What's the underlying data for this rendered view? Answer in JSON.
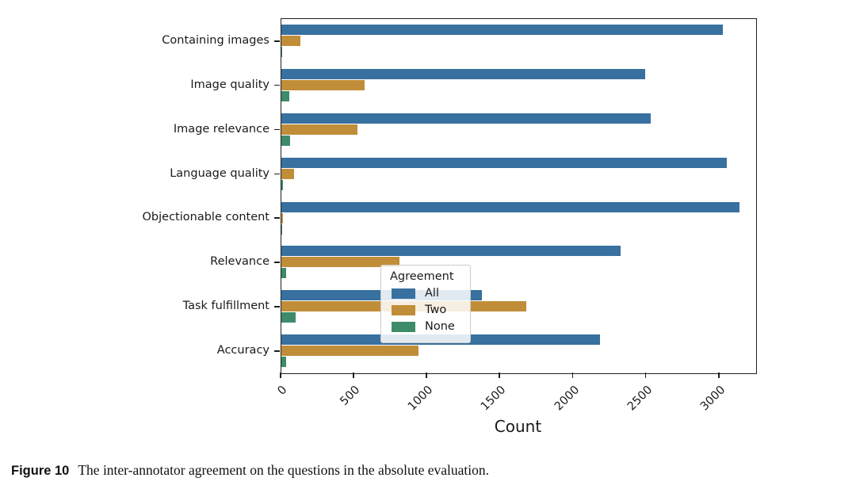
{
  "figure": {
    "caption_label": "Figure 10",
    "caption_text": "The inter-annotator agreement on the questions in the absolute evaluation."
  },
  "chart_data": {
    "type": "bar",
    "orientation": "horizontal",
    "title": "",
    "xlabel": "Count",
    "ylabel": "",
    "grid": false,
    "xlim": [
      0,
      3250
    ],
    "xticks": [
      0,
      500,
      1000,
      1500,
      2000,
      2500,
      3000
    ],
    "categories": [
      "Containing images",
      "Image quality",
      "Image relevance",
      "Language quality",
      "Objectionable content",
      "Relevance",
      "Task fulfillment",
      "Accuracy"
    ],
    "series": [
      {
        "name": "All",
        "color": "#38709f",
        "values": [
          3020,
          2490,
          2530,
          3050,
          3135,
          2320,
          1375,
          2180
        ]
      },
      {
        "name": "Two",
        "color": "#c08d38",
        "values": [
          130,
          570,
          520,
          85,
          12,
          810,
          1675,
          940
        ]
      },
      {
        "name": "None",
        "color": "#3e8b69",
        "values": [
          5,
          55,
          60,
          10,
          3,
          30,
          100,
          30
        ]
      }
    ],
    "legend": {
      "title": "Agreement",
      "position": "lower right",
      "entries": [
        "All",
        "Two",
        "None"
      ]
    }
  }
}
